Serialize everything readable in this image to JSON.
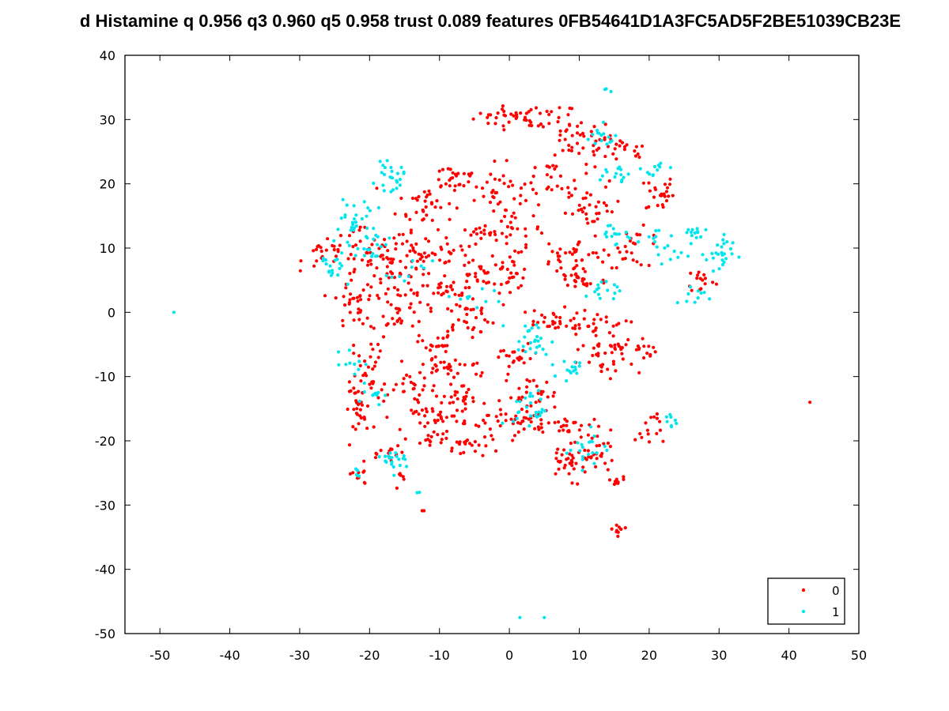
{
  "chart_data": {
    "type": "scatter",
    "title": "d Histamine q 0.956 q3 0.960 q5 0.958 trust 0.089 features 0FB54641D1A3FC5AD5F2BE51039CB23E",
    "xlabel": "",
    "ylabel": "",
    "xlim": [
      -55,
      50
    ],
    "ylim": [
      -50,
      40
    ],
    "xticks": [
      -50,
      -40,
      -30,
      -20,
      -10,
      0,
      10,
      20,
      30,
      40,
      50
    ],
    "yticks": [
      -50,
      -40,
      -30,
      -20,
      -10,
      0,
      10,
      20,
      30,
      40
    ],
    "grid": false,
    "legend_position": "bottom-right",
    "series": [
      {
        "name": "0",
        "color": "#ff0000",
        "clusters": [
          {
            "x": 0,
            "y": 30.5,
            "sx": 2.5,
            "sy": 0.8,
            "n": 30
          },
          {
            "x": 6,
            "y": 30,
            "sx": 1.8,
            "sy": 1.2,
            "n": 20
          },
          {
            "x": 10,
            "y": 27,
            "sx": 2.5,
            "sy": 1.5,
            "n": 35
          },
          {
            "x": 16,
            "y": 25,
            "sx": 2,
            "sy": 1,
            "n": 20
          },
          {
            "x": 21.5,
            "y": 18.5,
            "sx": 1,
            "sy": 1.5,
            "n": 25
          },
          {
            "x": -8,
            "y": 21,
            "sx": 2,
            "sy": 1.2,
            "n": 25
          },
          {
            "x": -12,
            "y": 17,
            "sx": 2,
            "sy": 2,
            "n": 35
          },
          {
            "x": -2,
            "y": 19,
            "sx": 2,
            "sy": 2,
            "n": 25
          },
          {
            "x": 6,
            "y": 21,
            "sx": 3,
            "sy": 2,
            "n": 35
          },
          {
            "x": 12,
            "y": 16,
            "sx": 2,
            "sy": 1.5,
            "n": 30
          },
          {
            "x": 0,
            "y": 13,
            "sx": 2.5,
            "sy": 2,
            "n": 35
          },
          {
            "x": -4,
            "y": 11.5,
            "sx": 2,
            "sy": 1,
            "n": 20
          },
          {
            "x": -12,
            "y": 9,
            "sx": 3,
            "sy": 2,
            "n": 45
          },
          {
            "x": -20,
            "y": 9,
            "sx": 3,
            "sy": 2,
            "n": 45
          },
          {
            "x": -26.5,
            "y": 9,
            "sx": 1.5,
            "sy": 1,
            "n": 20
          },
          {
            "x": 9.5,
            "y": 9,
            "sx": 2.5,
            "sy": 1.5,
            "n": 35
          },
          {
            "x": 18,
            "y": 10,
            "sx": 2,
            "sy": 1.5,
            "n": 25
          },
          {
            "x": 0,
            "y": 6,
            "sx": 1.5,
            "sy": 1.2,
            "n": 25
          },
          {
            "x": -5,
            "y": 5.5,
            "sx": 1.5,
            "sy": 1.5,
            "n": 25
          },
          {
            "x": -17,
            "y": 5,
            "sx": 2,
            "sy": 2,
            "n": 30
          },
          {
            "x": -9,
            "y": 3,
            "sx": 2,
            "sy": 1,
            "n": 25
          },
          {
            "x": 10,
            "y": 5,
            "sx": 2,
            "sy": 1,
            "n": 25
          },
          {
            "x": 27.5,
            "y": 5,
            "sx": 1,
            "sy": 1,
            "n": 15
          },
          {
            "x": -22,
            "y": 2,
            "sx": 1.5,
            "sy": 2.5,
            "n": 35
          },
          {
            "x": -16,
            "y": 0,
            "sx": 2,
            "sy": 1.5,
            "n": 30
          },
          {
            "x": -6,
            "y": -1,
            "sx": 2,
            "sy": 1.5,
            "n": 30
          },
          {
            "x": 6,
            "y": -1.5,
            "sx": 3,
            "sy": 1,
            "n": 35
          },
          {
            "x": 13,
            "y": -3,
            "sx": 2,
            "sy": 1.5,
            "n": 25
          },
          {
            "x": 18,
            "y": -5.5,
            "sx": 1.5,
            "sy": 1,
            "n": 20
          },
          {
            "x": -10.5,
            "y": -5,
            "sx": 1.2,
            "sy": 1,
            "n": 20
          },
          {
            "x": 1,
            "y": -7,
            "sx": 2,
            "sy": 1,
            "n": 20
          },
          {
            "x": 14,
            "y": -8,
            "sx": 2,
            "sy": 1.5,
            "n": 25
          },
          {
            "x": -8,
            "y": -8.5,
            "sx": 3,
            "sy": 1,
            "n": 30
          },
          {
            "x": -20,
            "y": -10,
            "sx": 1.2,
            "sy": 3,
            "n": 35
          },
          {
            "x": -14,
            "y": -12,
            "sx": 2,
            "sy": 2,
            "n": 30
          },
          {
            "x": -7,
            "y": -13,
            "sx": 2,
            "sy": 1,
            "n": 25
          },
          {
            "x": 3,
            "y": -13,
            "sx": 2,
            "sy": 1.5,
            "n": 30
          },
          {
            "x": -21.5,
            "y": -15,
            "sx": 1,
            "sy": 2,
            "n": 25
          },
          {
            "x": -10,
            "y": -16.5,
            "sx": 2,
            "sy": 1,
            "n": 30
          },
          {
            "x": -3,
            "y": -17.5,
            "sx": 1.5,
            "sy": 1.5,
            "n": 20
          },
          {
            "x": 3,
            "y": -17,
            "sx": 2,
            "sy": 1,
            "n": 30
          },
          {
            "x": 9,
            "y": -18,
            "sx": 2,
            "sy": 1,
            "n": 25
          },
          {
            "x": 20,
            "y": -18,
            "sx": 1,
            "sy": 1.5,
            "n": 15
          },
          {
            "x": -11,
            "y": -20,
            "sx": 1,
            "sy": 1,
            "n": 15
          },
          {
            "x": -6,
            "y": -21,
            "sx": 1.5,
            "sy": 0.8,
            "n": 15
          },
          {
            "x": 9,
            "y": -23,
            "sx": 2,
            "sy": 1.5,
            "n": 40
          },
          {
            "x": 13,
            "y": -22,
            "sx": 1,
            "sy": 1,
            "n": 15
          },
          {
            "x": -16.5,
            "y": -22,
            "sx": 1,
            "sy": 1,
            "n": 15
          },
          {
            "x": -21.5,
            "y": -25.5,
            "sx": 0.8,
            "sy": 0.8,
            "n": 10
          },
          {
            "x": -15.5,
            "y": -26,
            "sx": 0.5,
            "sy": 1,
            "n": 6
          },
          {
            "x": 15,
            "y": -26.5,
            "sx": 0.8,
            "sy": 0.5,
            "n": 10
          },
          {
            "x": 15.8,
            "y": -33.8,
            "sx": 0.8,
            "sy": 0.5,
            "n": 10
          },
          {
            "x": -12.8,
            "y": -30.8,
            "sx": 0.2,
            "sy": 0.2,
            "n": 2
          },
          {
            "x": 43,
            "y": -14,
            "sx": 0.1,
            "sy": 0.1,
            "n": 1
          }
        ]
      },
      {
        "name": "1",
        "color": "#00e5ee",
        "clusters": [
          {
            "x": 14,
            "y": 34.5,
            "sx": 0.3,
            "sy": 0.2,
            "n": 3
          },
          {
            "x": 13,
            "y": 27,
            "sx": 1.5,
            "sy": 1,
            "n": 15
          },
          {
            "x": 16,
            "y": 21.5,
            "sx": 2,
            "sy": 1,
            "n": 15
          },
          {
            "x": 21,
            "y": 22.5,
            "sx": 1,
            "sy": 0.8,
            "n": 10
          },
          {
            "x": -17,
            "y": 21,
            "sx": 1,
            "sy": 1,
            "n": 25
          },
          {
            "x": -22,
            "y": 15,
            "sx": 1.5,
            "sy": 1.5,
            "n": 20
          },
          {
            "x": -20,
            "y": 11,
            "sx": 1.5,
            "sy": 1.5,
            "n": 25
          },
          {
            "x": -25,
            "y": 8,
            "sx": 1,
            "sy": 2,
            "n": 20
          },
          {
            "x": 15,
            "y": 12,
            "sx": 1.5,
            "sy": 1,
            "n": 15
          },
          {
            "x": 21,
            "y": 12.5,
            "sx": 1,
            "sy": 1,
            "n": 10
          },
          {
            "x": 26,
            "y": 12,
            "sx": 1,
            "sy": 0.8,
            "n": 12
          },
          {
            "x": 30,
            "y": 9,
            "sx": 1,
            "sy": 1.5,
            "n": 25
          },
          {
            "x": 24,
            "y": 9,
            "sx": 1.5,
            "sy": 0.8,
            "n": 10
          },
          {
            "x": 13,
            "y": 3,
            "sx": 1.5,
            "sy": 1,
            "n": 15
          },
          {
            "x": 26,
            "y": 2.5,
            "sx": 1,
            "sy": 1,
            "n": 10
          },
          {
            "x": -14,
            "y": 6,
            "sx": 1.5,
            "sy": 1,
            "n": 10
          },
          {
            "x": -5,
            "y": 2,
            "sx": 2,
            "sy": 1,
            "n": 10
          },
          {
            "x": 3,
            "y": -4.5,
            "sx": 1.5,
            "sy": 1.5,
            "n": 25
          },
          {
            "x": 9,
            "y": -8.5,
            "sx": 1.5,
            "sy": 1,
            "n": 15
          },
          {
            "x": -22,
            "y": -8,
            "sx": 1,
            "sy": 1,
            "n": 10
          },
          {
            "x": -20,
            "y": -12.5,
            "sx": 1,
            "sy": 1,
            "n": 10
          },
          {
            "x": 3,
            "y": -15,
            "sx": 1.2,
            "sy": 1.5,
            "n": 25
          },
          {
            "x": 11,
            "y": -21,
            "sx": 1.5,
            "sy": 1.5,
            "n": 20
          },
          {
            "x": 23,
            "y": -17,
            "sx": 0.5,
            "sy": 0.8,
            "n": 8
          },
          {
            "x": -16,
            "y": -23,
            "sx": 1,
            "sy": 1,
            "n": 20
          },
          {
            "x": -22,
            "y": -25,
            "sx": 0.5,
            "sy": 0.5,
            "n": 5
          },
          {
            "x": -13,
            "y": -28,
            "sx": 0.2,
            "sy": 0.2,
            "n": 2
          },
          {
            "x": -48,
            "y": 0,
            "sx": 0.1,
            "sy": 0.1,
            "n": 1
          },
          {
            "x": 1.5,
            "y": -47.5,
            "sx": 0.05,
            "sy": 0.05,
            "n": 1
          },
          {
            "x": 5,
            "y": -47.5,
            "sx": 0.05,
            "sy": 0.05,
            "n": 1
          }
        ]
      }
    ]
  }
}
